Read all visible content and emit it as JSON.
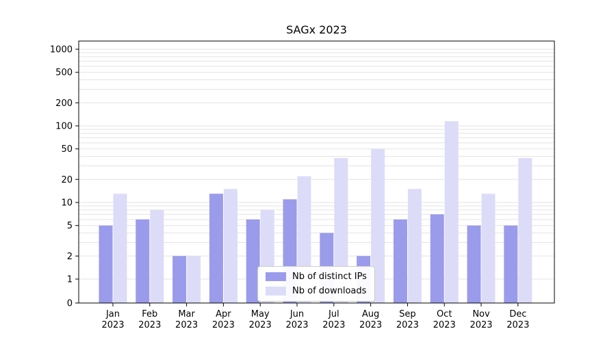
{
  "chart_data": {
    "type": "bar",
    "title": "SAGx 2023",
    "categories": [
      "Jan",
      "Feb",
      "Mar",
      "Apr",
      "May",
      "Jun",
      "Jul",
      "Aug",
      "Sep",
      "Oct",
      "Nov",
      "Dec"
    ],
    "category_year": "2023",
    "series": [
      {
        "name": "Nb of distinct IPs",
        "color": "#9b9beb",
        "values": [
          5,
          6,
          2,
          13,
          6,
          11,
          4,
          2,
          6,
          7,
          5,
          5
        ]
      },
      {
        "name": "Nb of downloads",
        "color": "#dcdcf9",
        "values": [
          13,
          8,
          2,
          15,
          8,
          22,
          38,
          50,
          15,
          115,
          13,
          38
        ]
      }
    ],
    "yscale": "symlog",
    "yticks": [
      0,
      1,
      2,
      5,
      10,
      20,
      50,
      100,
      200,
      500,
      1000
    ],
    "ylim": [
      0,
      1300
    ],
    "grid": "horizontal-log-minor",
    "legend_position": "lower center"
  }
}
